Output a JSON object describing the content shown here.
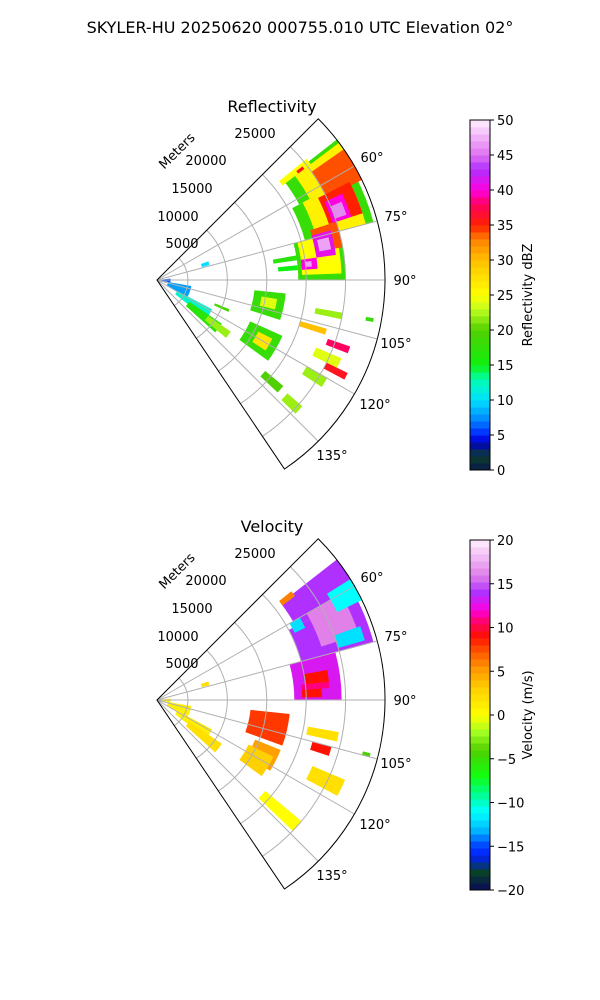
{
  "title": "SKYLER-HU  20250620  000755.010 UTC Elevation 02°",
  "chart_data": [
    {
      "type": "heatmap",
      "projection": "polar-sector",
      "title": "Reflectivity",
      "radial_label": "Meters",
      "range_max": 30000,
      "azimuth_range": [
        45,
        146
      ],
      "range_ticks": [
        5000,
        10000,
        15000,
        20000,
        25000
      ],
      "range_tick_labels": [
        "5000",
        "10000",
        "15000",
        "20000",
        "25000"
      ],
      "azimuth_ticks": [
        60,
        75,
        90,
        105,
        120,
        135
      ],
      "azimuth_tick_labels": [
        "60°",
        "75°",
        "90°",
        "105°",
        "120°",
        "135°"
      ],
      "grid": true,
      "colorbar": {
        "label": "Reflectivity dBZ",
        "min": 0,
        "max": 50,
        "ticks": [
          0,
          5,
          10,
          15,
          20,
          25,
          30,
          35,
          40,
          45,
          50
        ],
        "tick_labels": [
          "0",
          "5",
          "10",
          "15",
          "20",
          "25",
          "30",
          "35",
          "40",
          "45",
          "50"
        ],
        "stops": [
          [
            0,
            "#0b1a4a"
          ],
          [
            2,
            "#0b3d2a"
          ],
          [
            4,
            "#0000c8"
          ],
          [
            5,
            "#0020ff"
          ],
          [
            7,
            "#0080ff"
          ],
          [
            10,
            "#00e0ff"
          ],
          [
            13,
            "#00ffb0"
          ],
          [
            15,
            "#10f010"
          ],
          [
            20,
            "#50d000"
          ],
          [
            23,
            "#c0ff20"
          ],
          [
            25,
            "#ffff00"
          ],
          [
            30,
            "#ffc000"
          ],
          [
            33,
            "#ff8000"
          ],
          [
            35,
            "#ff2000"
          ],
          [
            38,
            "#ff0060"
          ],
          [
            40,
            "#ff00e0"
          ],
          [
            43,
            "#b030ff"
          ],
          [
            45,
            "#e070f0"
          ],
          [
            50,
            "#fff0ff"
          ]
        ]
      },
      "echo_fields": [
        "az_start_deg",
        "az_end_deg",
        "range_start_m",
        "range_end_m",
        "value_dBZ"
      ],
      "echoes": [
        [
          52,
          62,
          21500,
          30000,
          18
        ],
        [
          62,
          75,
          20500,
          29500,
          18
        ],
        [
          75,
          90,
          19000,
          25000,
          18
        ],
        [
          53,
          62,
          23000,
          30000,
          26
        ],
        [
          62,
          75,
          22000,
          28500,
          26
        ],
        [
          75,
          88,
          19500,
          24500,
          25
        ],
        [
          55,
          64,
          25000,
          30000,
          34
        ],
        [
          63,
          72,
          24000,
          28500,
          35
        ],
        [
          72,
          80,
          21500,
          25000,
          34
        ],
        [
          65,
          72,
          24500,
          27000,
          40
        ],
        [
          74,
          82,
          21500,
          24000,
          41
        ],
        [
          82,
          86,
          19500,
          21500,
          40
        ],
        [
          67,
          71,
          25000,
          26500,
          46
        ],
        [
          76,
          80,
          22000,
          23500,
          47
        ],
        [
          83,
          85,
          20000,
          20800,
          47
        ],
        [
          80,
          82,
          16000,
          19500,
          17
        ],
        [
          84,
          86,
          16500,
          19000,
          15
        ],
        [
          51,
          53,
          21000,
          25500,
          25
        ],
        [
          52,
          53,
          23500,
          24500,
          36
        ],
        [
          96,
          108,
          13500,
          17500,
          18
        ],
        [
          99,
          104,
          14500,
          16500,
          24
        ],
        [
          114,
          126,
          14000,
          18500,
          18
        ],
        [
          117,
          123,
          15500,
          17500,
          27
        ],
        [
          100,
          102,
          21500,
          25000,
          22
        ],
        [
          106,
          108,
          20000,
          23500,
          30
        ],
        [
          109,
          111,
          24000,
          27000,
          38
        ],
        [
          113,
          116,
          23000,
          26500,
          24
        ],
        [
          116,
          118,
          25000,
          28000,
          36
        ],
        [
          120,
          123,
          23000,
          26000,
          22
        ],
        [
          100,
          120,
          2500,
          5500,
          8
        ],
        [
          118,
          128,
          4000,
          9000,
          12
        ],
        [
          124,
          132,
          6000,
          11000,
          17
        ],
        [
          125,
          130,
          9000,
          12500,
          22
        ],
        [
          84,
          100,
          1200,
          2800,
          6
        ],
        [
          130,
          133,
          19000,
          22000,
          20
        ],
        [
          131,
          134,
          23000,
          25500,
          22
        ],
        [
          70,
          74,
          7000,
          8000,
          10
        ],
        [
          100,
          101,
          28000,
          29000,
          18
        ],
        [
          112,
          114,
          9000,
          11000,
          19
        ]
      ]
    },
    {
      "type": "heatmap",
      "projection": "polar-sector",
      "title": "Velocity",
      "radial_label": "Meters",
      "range_max": 30000,
      "azimuth_range": [
        45,
        146
      ],
      "range_ticks": [
        5000,
        10000,
        15000,
        20000,
        25000
      ],
      "range_tick_labels": [
        "5000",
        "10000",
        "15000",
        "20000",
        "25000"
      ],
      "azimuth_ticks": [
        60,
        75,
        90,
        105,
        120,
        135
      ],
      "azimuth_tick_labels": [
        "60°",
        "75°",
        "90°",
        "105°",
        "120°",
        "135°"
      ],
      "grid": true,
      "colorbar": {
        "label": "Velocity (m/s)",
        "min": -20,
        "max": 20,
        "ticks": [
          -20,
          -15,
          -10,
          -5,
          0,
          5,
          10,
          15,
          20
        ],
        "tick_labels": [
          "−20",
          "−15",
          "−10",
          "−5",
          "0",
          "5",
          "10",
          "15",
          "20"
        ],
        "stops": [
          [
            -20,
            "#0a0a5a"
          ],
          [
            -18,
            "#08402a"
          ],
          [
            -16,
            "#0020ff"
          ],
          [
            -15,
            "#0040ff"
          ],
          [
            -13,
            "#00c0ff"
          ],
          [
            -11,
            "#00ffff"
          ],
          [
            -9,
            "#00ff90"
          ],
          [
            -7,
            "#10ff10"
          ],
          [
            -4,
            "#50d000"
          ],
          [
            -2,
            "#a0ff20"
          ],
          [
            0,
            "#ffff00"
          ],
          [
            3,
            "#ffd000"
          ],
          [
            5,
            "#ffa000"
          ],
          [
            7,
            "#ff6000"
          ],
          [
            9,
            "#ff1000"
          ],
          [
            11,
            "#ff0080"
          ],
          [
            12,
            "#ff00e0"
          ],
          [
            14,
            "#b030ff"
          ],
          [
            16,
            "#e080e8"
          ],
          [
            20,
            "#fff0ff"
          ]
        ]
      },
      "echo_fields": [
        "az_start_deg",
        "az_end_deg",
        "range_start_m",
        "range_end_m",
        "value_mps"
      ],
      "echoes": [
        [
          52,
          62,
          21000,
          30000,
          14
        ],
        [
          62,
          75,
          20000,
          29500,
          14
        ],
        [
          75,
          90,
          18500,
          24500,
          13
        ],
        [
          60,
          72,
          23000,
          28000,
          16
        ],
        [
          58,
          64,
          26500,
          30000,
          -11
        ],
        [
          70,
          74,
          25000,
          28500,
          -12
        ],
        [
          60,
          64,
          20500,
          22000,
          -12
        ],
        [
          80,
          84,
          20000,
          23000,
          9
        ],
        [
          86,
          89,
          19500,
          22000,
          9
        ],
        [
          84,
          86,
          19500,
          23000,
          11
        ],
        [
          96,
          110,
          13000,
          18000,
          8
        ],
        [
          112,
          122,
          14500,
          18000,
          5
        ],
        [
          116,
          126,
          14000,
          17500,
          3
        ],
        [
          105,
          108,
          21500,
          24000,
          9
        ],
        [
          100,
          103,
          20500,
          24500,
          2
        ],
        [
          113,
          118,
          22500,
          27000,
          2
        ],
        [
          104,
          105,
          28000,
          29000,
          -4
        ],
        [
          100,
          120,
          2500,
          5500,
          1
        ],
        [
          118,
          128,
          4000,
          9000,
          1
        ],
        [
          124,
          132,
          6000,
          11000,
          2
        ],
        [
          130,
          134,
          19000,
          25000,
          0
        ],
        [
          51,
          53,
          21000,
          23000,
          6
        ],
        [
          84,
          100,
          1200,
          2800,
          1
        ],
        [
          70,
          74,
          7000,
          8000,
          2
        ]
      ]
    }
  ]
}
